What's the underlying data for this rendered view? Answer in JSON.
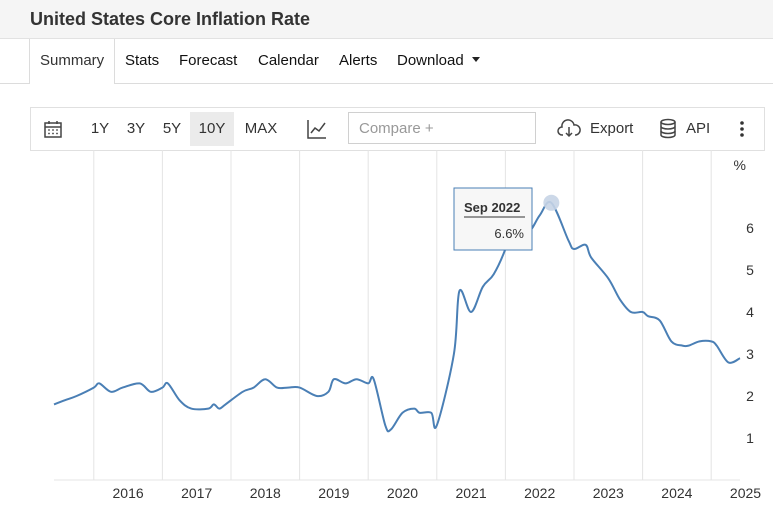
{
  "header": {
    "title": "United States Core Inflation Rate"
  },
  "tabs": [
    "Summary",
    "Stats",
    "Forecast",
    "Calendar",
    "Alerts",
    "Download"
  ],
  "toolbar": {
    "ranges": [
      "1Y",
      "3Y",
      "5Y",
      "10Y",
      "MAX"
    ],
    "active_range": "10Y",
    "compare_placeholder": "Compare +",
    "export_label": "Export",
    "api_label": "API"
  },
  "tooltip": {
    "date": "Sep 2022",
    "value": "6.6%"
  },
  "chart_data": {
    "type": "line",
    "unit_label": "%",
    "x_tick_labels": [
      "2016",
      "2017",
      "2018",
      "2019",
      "2020",
      "2021",
      "2022",
      "2023",
      "2024",
      "2025"
    ],
    "y_tick_labels": [
      "1",
      "2",
      "3",
      "4",
      "5",
      "6"
    ],
    "xlim": [
      2015.42,
      2025.42
    ],
    "ylim": [
      0,
      7
    ],
    "grid": true,
    "line_color": "#4a7fb5",
    "x": [
      2015.42,
      2015.58,
      2015.75,
      2016.0,
      2016.08,
      2016.25,
      2016.42,
      2016.67,
      2016.83,
      2017.0,
      2017.08,
      2017.25,
      2017.42,
      2017.67,
      2017.75,
      2017.83,
      2017.92,
      2018.17,
      2018.33,
      2018.5,
      2018.67,
      2018.83,
      2019.0,
      2019.25,
      2019.42,
      2019.5,
      2019.67,
      2019.83,
      2020.0,
      2020.08,
      2020.25,
      2020.33,
      2020.5,
      2020.67,
      2020.75,
      2020.92,
      2021.0,
      2021.25,
      2021.33,
      2021.5,
      2021.67,
      2021.83,
      2022.0,
      2022.08,
      2022.33,
      2022.5,
      2022.67,
      2022.92,
      2023.0,
      2023.17,
      2023.25,
      2023.5,
      2023.67,
      2023.83,
      2024.0,
      2024.08,
      2024.25,
      2024.42,
      2024.58,
      2024.67,
      2024.83,
      2025.0,
      2025.08,
      2025.25,
      2025.42
    ],
    "values": [
      1.8,
      1.9,
      2.0,
      2.2,
      2.3,
      2.1,
      2.2,
      2.3,
      2.1,
      2.2,
      2.3,
      1.9,
      1.7,
      1.7,
      1.8,
      1.7,
      1.8,
      2.1,
      2.2,
      2.4,
      2.2,
      2.2,
      2.2,
      2.0,
      2.1,
      2.4,
      2.3,
      2.4,
      2.3,
      2.4,
      1.3,
      1.2,
      1.6,
      1.7,
      1.6,
      1.6,
      1.3,
      3.0,
      4.5,
      4.0,
      4.6,
      4.9,
      5.5,
      6.0,
      5.9,
      6.3,
      6.6,
      5.7,
      5.5,
      5.6,
      5.3,
      4.8,
      4.3,
      4.0,
      4.0,
      3.9,
      3.8,
      3.3,
      3.2,
      3.2,
      3.3,
      3.3,
      3.2,
      2.8,
      2.9
    ]
  }
}
